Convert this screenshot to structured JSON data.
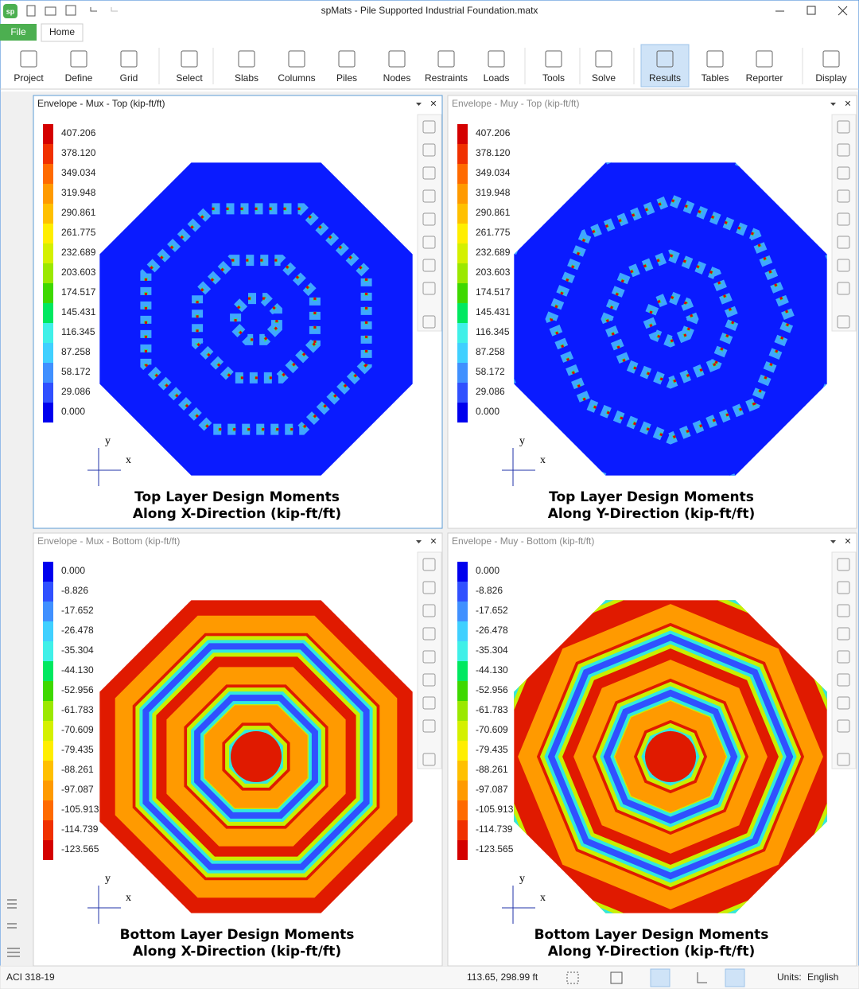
{
  "window": {
    "title": "spMats - Pile Supported Industrial Foundation.matx"
  },
  "ribbon": {
    "tabs": [
      "File",
      "Home"
    ],
    "buttons": [
      "Project",
      "Define",
      "Grid",
      "Select",
      "Slabs",
      "Columns",
      "Piles",
      "Nodes",
      "Restraints",
      "Loads",
      "Tools",
      "Solve",
      "Results",
      "Tables",
      "Reporter",
      "Display"
    ]
  },
  "panels": [
    {
      "title": "Envelope - Mux - Top (kip-ft/ft)",
      "legend": [
        "407.206",
        "378.120",
        "349.034",
        "319.948",
        "290.861",
        "261.775",
        "232.689",
        "203.603",
        "174.517",
        "145.431",
        "116.345",
        "87.258",
        "58.172",
        "29.086",
        "0.000"
      ],
      "axis": {
        "y": "y",
        "x": "x"
      },
      "caption": [
        "Top Layer Design Moments",
        "Along X-Direction (kip-ft/ft)"
      ]
    },
    {
      "title": "Envelope - Muy - Top (kip-ft/ft)",
      "legend": [
        "407.206",
        "378.120",
        "349.034",
        "319.948",
        "290.861",
        "261.775",
        "232.689",
        "203.603",
        "174.517",
        "145.431",
        "116.345",
        "87.258",
        "58.172",
        "29.086",
        "0.000"
      ],
      "axis": {
        "y": "y",
        "x": "x"
      },
      "caption": [
        "Top Layer Design Moments",
        "Along Y-Direction (kip-ft/ft)"
      ]
    },
    {
      "title": "Envelope - Mux - Bottom (kip-ft/ft)",
      "legend": [
        "0.000",
        "-8.826",
        "-17.652",
        "-26.478",
        "-35.304",
        "-44.130",
        "-52.956",
        "-61.783",
        "-70.609",
        "-79.435",
        "-88.261",
        "-97.087",
        "-105.913",
        "-114.739",
        "-123.565"
      ],
      "axis": {
        "y": "y",
        "x": "x"
      },
      "caption": [
        "Bottom Layer Design Moments",
        "Along X-Direction (kip-ft/ft)"
      ]
    },
    {
      "title": "Envelope - Muy - Bottom (kip-ft/ft)",
      "legend": [
        "0.000",
        "-8.826",
        "-17.652",
        "-26.478",
        "-35.304",
        "-44.130",
        "-52.956",
        "-61.783",
        "-70.609",
        "-79.435",
        "-88.261",
        "-97.087",
        "-105.913",
        "-114.739",
        "-123.565"
      ],
      "axis": {
        "y": "y",
        "x": "x"
      },
      "caption": [
        "Bottom Layer Design Moments",
        "Along Y-Direction (kip-ft/ft)"
      ]
    }
  ],
  "status": {
    "code": "ACI 318-19",
    "coords": "113.65, 298.99 ft",
    "units_label": "Units:",
    "units": "English"
  }
}
